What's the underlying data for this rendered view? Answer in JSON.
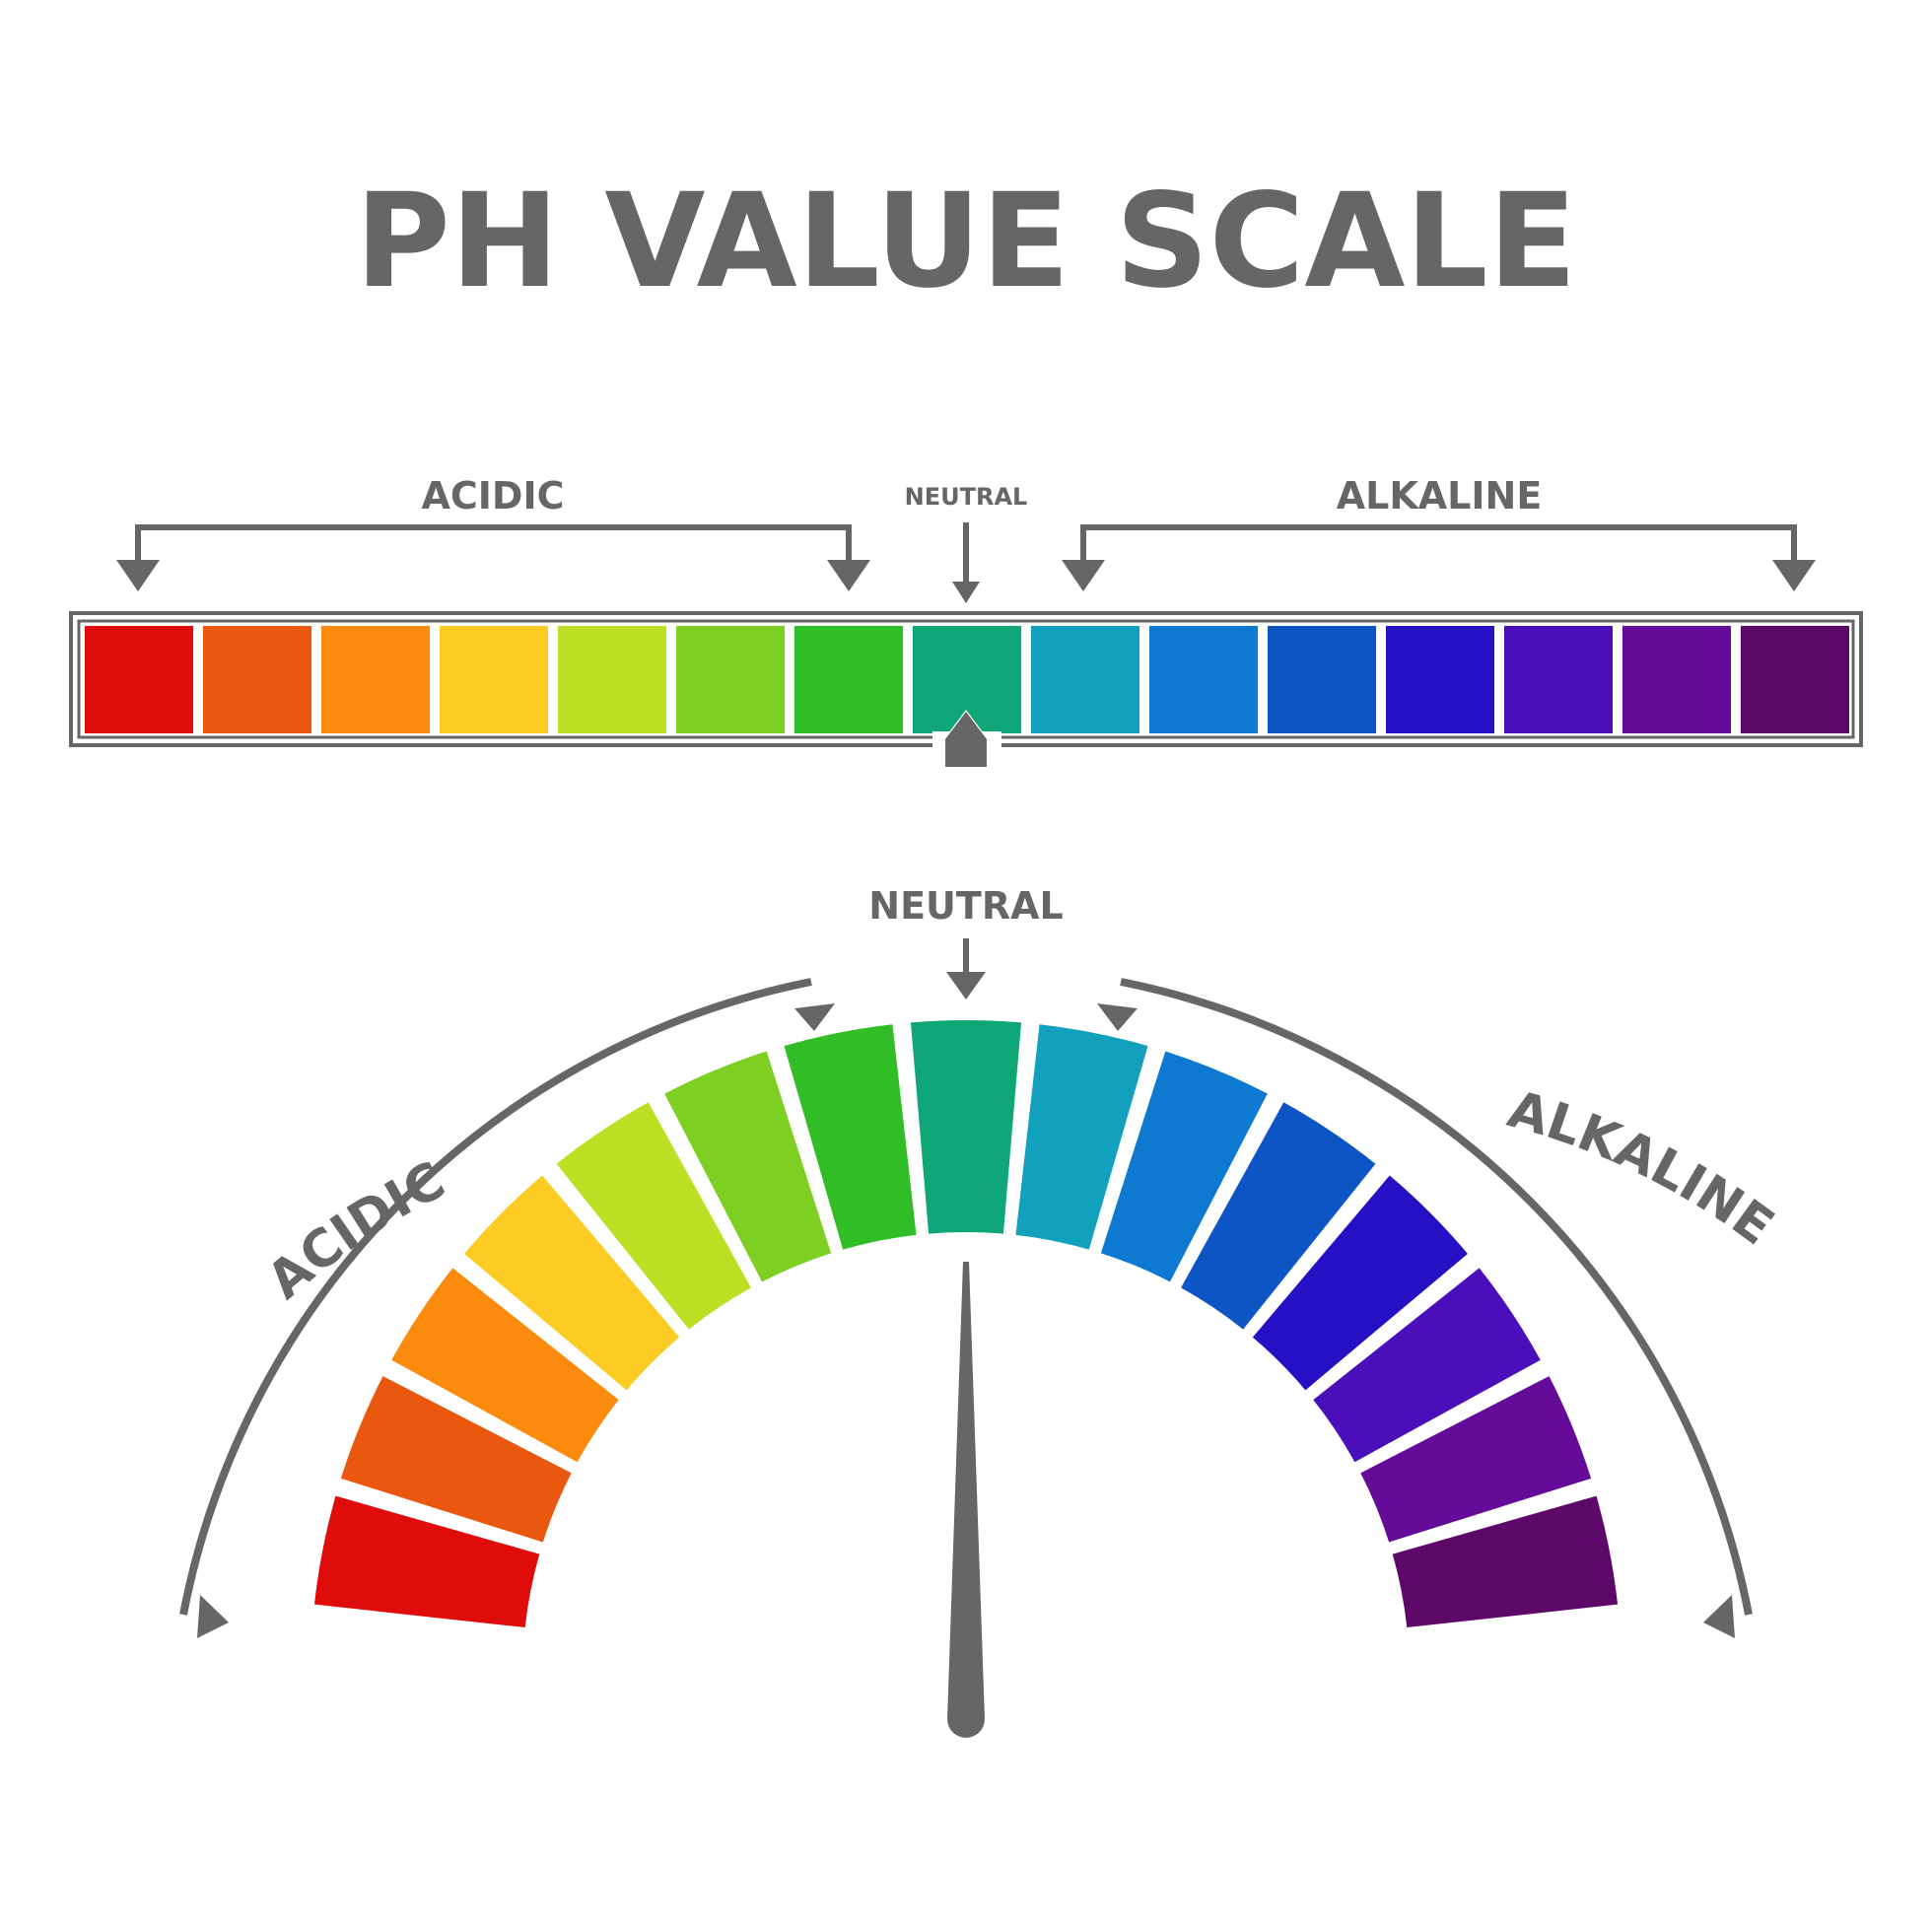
{
  "title": "PH VALUE SCALE",
  "labels": {
    "acidic": "ACIDIC",
    "neutral": "NEUTRAL",
    "alkaline": "ALKALINE"
  },
  "colors": {
    "text": "#666666",
    "frame": "#666666",
    "segments": [
      "#e00c0c",
      "#e9580e",
      "#fb8a0d",
      "#fdcc24",
      "#bbe024",
      "#7dcf22",
      "#30bd26",
      "#0fa677",
      "#12a1bd",
      "#0e79d1",
      "#0d55c4",
      "#2510c4",
      "#4a0eba",
      "#640c99",
      "#5d0868"
    ]
  },
  "scale": {
    "segment_count": 15,
    "neutral_index": 7,
    "pointer_index": 7
  },
  "gauge": {
    "needle_index": 7
  }
}
